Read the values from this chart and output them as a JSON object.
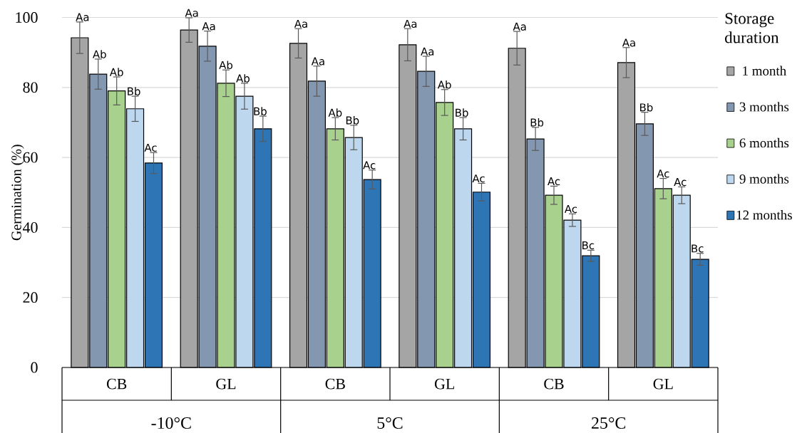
{
  "chart_data": {
    "type": "bar",
    "ylabel": "Germination (%)",
    "legend_title": "Storage duration",
    "categories": [
      "CB",
      "GL",
      "CB",
      "GL",
      "CB",
      "GL"
    ],
    "annotations": [
      "-10°C",
      "5°C",
      "25°C"
    ],
    "series": [
      {
        "name": "1 month",
        "color": "#a5a5a5",
        "values": [
          94.2,
          96.4,
          92.6,
          92.2,
          91.2,
          87.1
        ],
        "errors": [
          4.5,
          3.5,
          4.2,
          4.6,
          4.8,
          4.3
        ],
        "value_labels": [
          "Aa",
          "Aa",
          "Aa",
          "Aa",
          "Aa",
          "Aa"
        ]
      },
      {
        "name": "3 months",
        "color": "#8497b0",
        "values": [
          83.8,
          91.8,
          81.8,
          84.6,
          65.3,
          69.6
        ],
        "errors": [
          4.3,
          4.3,
          4.3,
          4.3,
          3.3,
          3.3
        ],
        "value_labels": [
          "Ab",
          "Aa",
          "Aa",
          "Aa",
          "Bb",
          "Bb"
        ]
      },
      {
        "name": "6 months",
        "color": "#a9d18e",
        "values": [
          79.0,
          81.2,
          68.2,
          75.7,
          49.2,
          51.1
        ],
        "errors": [
          4.0,
          3.8,
          3.2,
          3.7,
          2.6,
          2.9
        ],
        "value_labels": [
          "Ab",
          "Ab",
          "Ab",
          "Ab",
          "Ac",
          "Ac"
        ]
      },
      {
        "name": "9 months",
        "color": "#bdd7ee",
        "values": [
          73.9,
          77.5,
          65.7,
          68.2,
          42.1,
          49.2
        ],
        "errors": [
          3.6,
          3.7,
          3.5,
          3.2,
          1.8,
          2.4
        ],
        "value_labels": [
          "Bb",
          "Ab",
          "Bb",
          "Bb",
          "Ac",
          "Ac"
        ]
      },
      {
        "name": "12 months",
        "color": "#2e75b6",
        "values": [
          58.4,
          68.2,
          53.7,
          50.1,
          31.9,
          30.9
        ],
        "errors": [
          3.0,
          3.6,
          2.7,
          2.5,
          1.6,
          1.7
        ],
        "value_labels": [
          "Ac",
          "Bb",
          "Ac",
          "Ac",
          "Bc",
          "Bc"
        ]
      }
    ],
    "ylim": [
      0,
      100
    ],
    "yticks": [
      0,
      20,
      40,
      60,
      80,
      100
    ],
    "grid": "y",
    "legend": "right"
  }
}
